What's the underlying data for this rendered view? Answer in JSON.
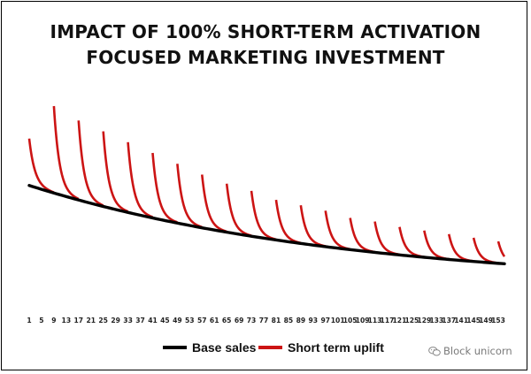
{
  "chart_data": {
    "type": "line",
    "title": [
      "IMPACT OF 100% SHORT-TERM ACTIVATION",
      "FOCUSED MARKETING INVESTMENT"
    ],
    "xlabel": "",
    "ylabel": "",
    "x_tick_labels": [
      "1",
      "5",
      "9",
      "13",
      "17",
      "21",
      "25",
      "29",
      "33",
      "37",
      "41",
      "45",
      "49",
      "53",
      "57",
      "61",
      "65",
      "69",
      "73",
      "77",
      "81",
      "85",
      "89",
      "93",
      "97",
      "101",
      "105",
      "109",
      "113",
      "117",
      "121",
      "125",
      "129",
      "133",
      "137",
      "141",
      "145",
      "149",
      "153"
    ],
    "x_range": [
      1,
      155
    ],
    "y_axis_shown": false,
    "grid": false,
    "legend_placement": "bottom",
    "series": [
      {
        "name": "Base sales",
        "color": "#000000",
        "base_start": 56,
        "decay_per_period": 0.0097,
        "values_at_ticks": [
          56.0,
          53.9,
          51.9,
          50.0,
          48.1,
          46.3,
          44.6,
          42.9,
          41.3,
          39.8,
          38.3,
          36.9,
          35.5,
          34.2,
          32.9,
          31.7,
          30.5,
          29.4,
          28.3,
          27.2,
          26.2,
          25.2,
          24.3,
          23.4,
          22.5,
          21.7,
          20.9,
          20.1,
          19.4,
          18.6,
          17.9,
          17.3,
          16.6,
          16.0,
          15.4,
          14.8,
          14.3,
          13.7,
          13.2
        ]
      },
      {
        "name": "Short term uplift",
        "color": "#cc1414",
        "pulse_start_periods": [
          1,
          9,
          17,
          25,
          33,
          41,
          49,
          57,
          65,
          73,
          81,
          89,
          97,
          105,
          113,
          121,
          129,
          137,
          145,
          153
        ],
        "peak_values": [
          82,
          100,
          92,
          86,
          80,
          74,
          68,
          62,
          57,
          53,
          48,
          45,
          42,
          38,
          36,
          33,
          31,
          29,
          27,
          25
        ],
        "pulse_decay_per_period": 0.55
      }
    ]
  },
  "legend": {
    "base_label": "Base sales",
    "uplift_label": "Short term uplift"
  },
  "watermark": {
    "text": "Block unicorn",
    "icon": "wechat-icon"
  }
}
